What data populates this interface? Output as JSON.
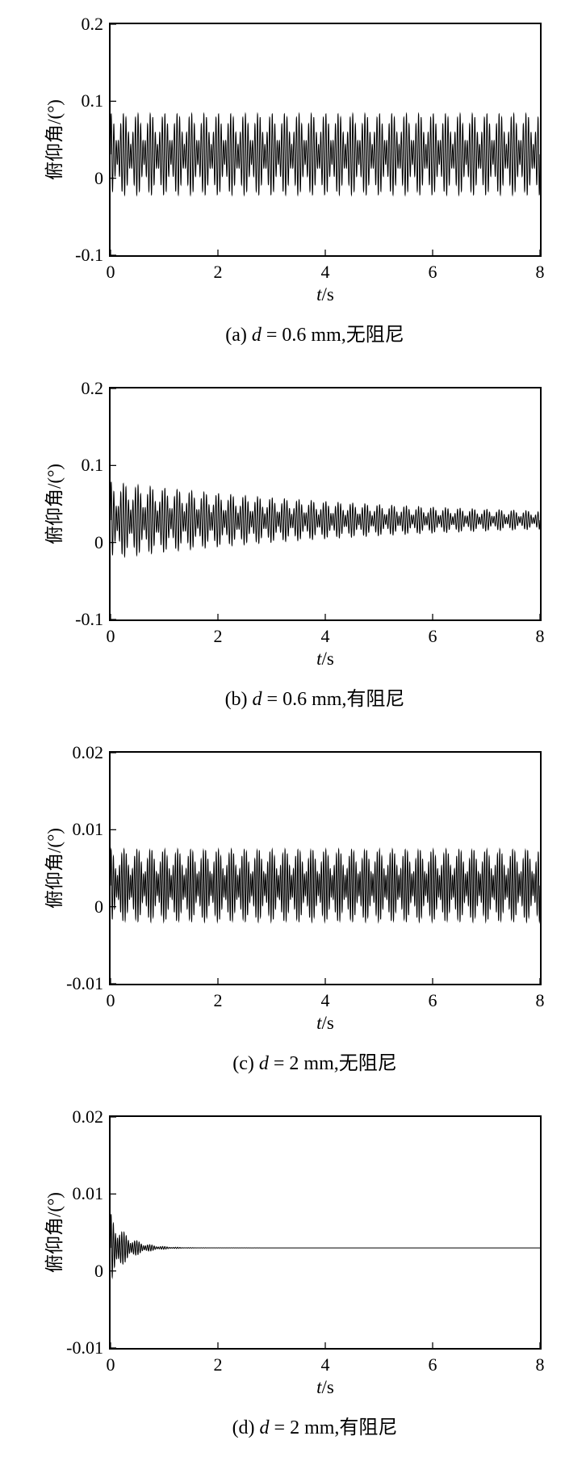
{
  "figure": {
    "background": "#ffffff",
    "line_color": "#000000"
  },
  "chart_data": [
    {
      "type": "line",
      "panel": "a",
      "caption_prefix": "(a) ",
      "caption_var": "d",
      "caption_rest": " = 0.6 mm,无阻尼",
      "xlabel_var": "t",
      "xlabel_unit": "/s",
      "ylabel": "俯仰角/(°)",
      "xlim": [
        0,
        8
      ],
      "ylim": [
        -0.1,
        0.2
      ],
      "xticks": [
        0,
        2,
        4,
        6,
        8
      ],
      "xtick_labels": [
        "0",
        "2",
        "4",
        "6",
        "8"
      ],
      "yticks": [
        -0.1,
        0,
        0.1,
        0.2
      ],
      "ytick_labels": [
        "-0.1",
        "0",
        "0.1",
        "0.2"
      ],
      "waveform_summary": "constant-amplitude beating oscillation about 0.03°, peaks ≈ 0.085°, troughs ≈ −0.02°, no decay over 0–8 s",
      "signal": {
        "mean": 0.031,
        "decay": 0,
        "components": [
          {
            "amp": 0.033,
            "freq": 22
          },
          {
            "amp": 0.02,
            "freq": 18
          }
        ]
      }
    },
    {
      "type": "line",
      "panel": "b",
      "caption_prefix": "(b) ",
      "caption_var": "d",
      "caption_rest": " = 0.6 mm,有阻尼",
      "xlabel_var": "t",
      "xlabel_unit": "/s",
      "ylabel": "俯仰角/(°)",
      "xlim": [
        0,
        8
      ],
      "ylim": [
        -0.1,
        0.2
      ],
      "xticks": [
        0,
        2,
        4,
        6,
        8
      ],
      "xtick_labels": [
        "0",
        "2",
        "4",
        "6",
        "8"
      ],
      "yticks": [
        -0.1,
        0,
        0.1,
        0.2
      ],
      "ytick_labels": [
        "-0.1",
        "0",
        "0.1",
        "0.2"
      ],
      "waveform_summary": "slowly damped oscillation about 0.03°, initial peaks ≈ 0.08° / troughs ≈ −0.02°, envelope shrinking to ≈ 0.02–0.045° band at t = 8 s",
      "signal": {
        "mean": 0.029,
        "decay": 0.18,
        "components": [
          {
            "amp": 0.032,
            "freq": 22
          },
          {
            "amp": 0.018,
            "freq": 18
          }
        ]
      }
    },
    {
      "type": "line",
      "panel": "c",
      "caption_prefix": "(c) ",
      "caption_var": "d",
      "caption_rest": " = 2 mm,无阻尼",
      "xlabel_var": "t",
      "xlabel_unit": "/s",
      "ylabel": "俯仰角/(°)",
      "xlim": [
        0,
        8
      ],
      "ylim": [
        -0.01,
        0.02
      ],
      "xticks": [
        0,
        2,
        4,
        6,
        8
      ],
      "xtick_labels": [
        "0",
        "2",
        "4",
        "6",
        "8"
      ],
      "yticks": [
        -0.01,
        0,
        0.01,
        0.02
      ],
      "ytick_labels": [
        "-0.01",
        "0",
        "0.01",
        "0.02"
      ],
      "waveform_summary": "constant dense oscillation about 0.003°, peaks ≈ 0.0075°, troughs ≈ −0.002°, no decay over 0–8 s",
      "signal": {
        "mean": 0.00275,
        "decay": 0,
        "components": [
          {
            "amp": 0.003,
            "freq": 25
          },
          {
            "amp": 0.0017,
            "freq": 21
          }
        ]
      }
    },
    {
      "type": "line",
      "panel": "d",
      "caption_prefix": "(d) ",
      "caption_var": "d",
      "caption_rest": " = 2 mm,有阻尼",
      "xlabel_var": "t",
      "xlabel_unit": "/s",
      "ylabel": "俯仰角/(°)",
      "xlim": [
        0,
        8
      ],
      "ylim": [
        -0.01,
        0.02
      ],
      "xticks": [
        0,
        2,
        4,
        6,
        8
      ],
      "xtick_labels": [
        "0",
        "2",
        "4",
        "6",
        "8"
      ],
      "yticks": [
        -0.01,
        0,
        0.01,
        0.02
      ],
      "ytick_labels": [
        "-0.01",
        "0",
        "0.01",
        "0.02"
      ],
      "waveform_summary": "rapidly damped oscillation: initial peaks ≈ 0.0075° / troughs ≈ −0.0015°, decays to a flat line at ≈ 0.003° by t ≈ 1.5 s",
      "signal": {
        "mean": 0.003,
        "decay": 3.2,
        "components": [
          {
            "amp": 0.0032,
            "freq": 25
          },
          {
            "amp": 0.0013,
            "freq": 21
          }
        ]
      }
    }
  ]
}
